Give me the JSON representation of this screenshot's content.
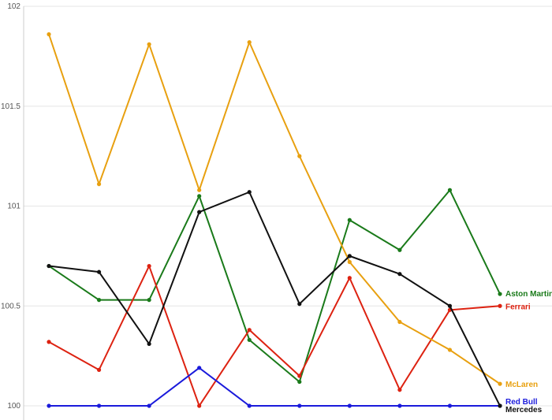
{
  "chart_data": {
    "type": "line",
    "title": "",
    "xlabel": "",
    "ylabel": "",
    "ylim": [
      100,
      102
    ],
    "yticks": [
      "100",
      "100.5",
      "101",
      "101.5",
      "102"
    ],
    "ytick_values": [
      100,
      100.5,
      101,
      101.5,
      102
    ],
    "x": [
      1,
      2,
      3,
      4,
      5,
      6,
      7,
      8,
      9,
      10
    ],
    "grid": "horizontal",
    "legend": "end-of-line labels",
    "series": [
      {
        "name": "Aston Martin",
        "color": "#1a7a1a",
        "values": [
          100.7,
          100.53,
          100.53,
          101.05,
          100.33,
          100.12,
          100.93,
          100.78,
          101.08,
          100.56
        ]
      },
      {
        "name": "Ferrari",
        "color": "#dd2211",
        "values": [
          100.32,
          100.18,
          100.7,
          100.0,
          100.38,
          100.15,
          100.64,
          100.08,
          100.48,
          100.5
        ]
      },
      {
        "name": "McLaren",
        "color": "#e8a010",
        "values": [
          101.86,
          101.11,
          101.81,
          101.08,
          101.82,
          101.25,
          100.72,
          100.42,
          100.28,
          100.11
        ]
      },
      {
        "name": "Red Bull",
        "color": "#1a1adb",
        "values": [
          100.0,
          100.0,
          100.0,
          100.19,
          100.0,
          100.0,
          100.0,
          100.0,
          100.0,
          100.0
        ]
      },
      {
        "name": "Mercedes",
        "color": "#111111",
        "values": [
          100.7,
          100.67,
          100.31,
          100.97,
          101.07,
          100.51,
          100.75,
          100.66,
          100.5,
          100.0
        ]
      }
    ]
  }
}
